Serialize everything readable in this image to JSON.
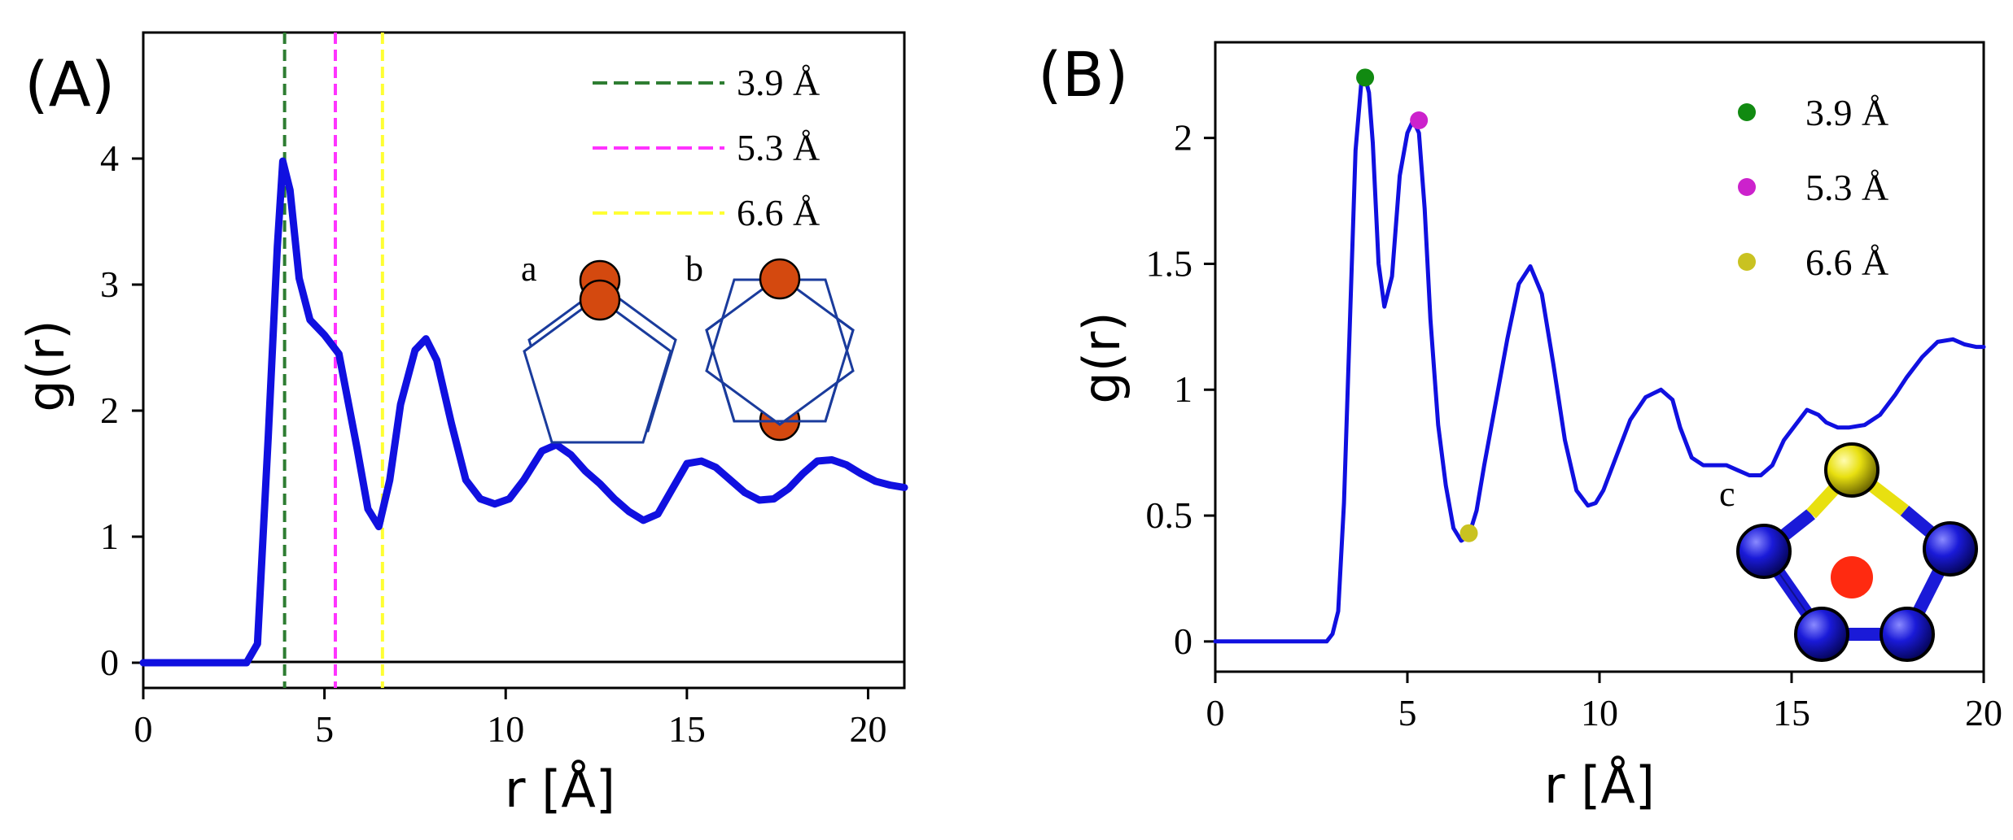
{
  "colors": {
    "curve": "#1010e0",
    "axis": "#000000",
    "green": "#2e7d32",
    "magenta": "#ff33ff",
    "yellow": "#ffff33",
    "dot_green": "#118a11",
    "dot_magenta": "#cc22cc",
    "dot_yellow": "#c9c221",
    "atom_orange": "#d4490f",
    "pentagon": "#1a3b9c",
    "sphere_blue": "#1a1ad8",
    "sphere_yellow": "#e8e010",
    "center_red": "#ff2a10"
  },
  "chart_data": [
    {
      "type": "line",
      "panel_label": "(A)",
      "xlabel": "r [Å]",
      "ylabel": "g(r)",
      "xlim": [
        0,
        21
      ],
      "ylim": [
        -0.2,
        5.0
      ],
      "xticks": [
        0,
        5,
        10,
        15,
        20
      ],
      "yticks": [
        0,
        1,
        2,
        3,
        4
      ],
      "grid": false,
      "series": [
        {
          "name": "g(r)",
          "x": [
            0,
            2.85,
            3.15,
            3.45,
            3.7,
            3.85,
            4.05,
            4.3,
            4.6,
            5.0,
            5.4,
            5.9,
            6.2,
            6.5,
            6.8,
            7.1,
            7.5,
            7.8,
            8.1,
            8.5,
            8.9,
            9.3,
            9.7,
            10.1,
            10.5,
            11.0,
            11.4,
            11.8,
            12.2,
            12.6,
            13.0,
            13.4,
            13.8,
            14.2,
            14.6,
            15.0,
            15.4,
            15.8,
            16.2,
            16.6,
            17.0,
            17.4,
            17.8,
            18.2,
            18.6,
            19.0,
            19.4,
            19.8,
            20.2,
            20.6,
            21.0
          ],
          "y": [
            0,
            0,
            0.15,
            1.8,
            3.3,
            3.98,
            3.75,
            3.05,
            2.72,
            2.6,
            2.45,
            1.7,
            1.22,
            1.08,
            1.45,
            2.05,
            2.48,
            2.57,
            2.4,
            1.9,
            1.45,
            1.3,
            1.26,
            1.3,
            1.45,
            1.68,
            1.73,
            1.65,
            1.52,
            1.42,
            1.3,
            1.2,
            1.13,
            1.18,
            1.38,
            1.58,
            1.6,
            1.55,
            1.45,
            1.35,
            1.29,
            1.3,
            1.38,
            1.5,
            1.6,
            1.61,
            1.57,
            1.5,
            1.44,
            1.41,
            1.39
          ]
        }
      ],
      "vlines": [
        {
          "x": 3.9,
          "label": "3.9 Å",
          "color": "#2e7d32"
        },
        {
          "x": 5.3,
          "label": "5.3 Å",
          "color": "#ff33ff"
        },
        {
          "x": 6.6,
          "label": "6.6 Å",
          "color": "#ffff33"
        }
      ],
      "legend_position": "top-right",
      "inset_labels": [
        "a",
        "b"
      ]
    },
    {
      "type": "line",
      "panel_label": "(B)",
      "xlabel": "r [Å]",
      "ylabel": "g(r)",
      "xlim": [
        0,
        20
      ],
      "ylim": [
        -0.12,
        2.38
      ],
      "xticks": [
        0,
        5,
        10,
        15,
        20
      ],
      "yticks": [
        0,
        0.5,
        1,
        1.5,
        2
      ],
      "ytick_labels": [
        "0",
        "0.5",
        "1",
        "1.5",
        "2"
      ],
      "grid": false,
      "series": [
        {
          "name": "g(r)",
          "x": [
            0,
            2.9,
            3.05,
            3.2,
            3.35,
            3.5,
            3.65,
            3.8,
            3.9,
            4.0,
            4.1,
            4.25,
            4.4,
            4.6,
            4.8,
            5.0,
            5.15,
            5.3,
            5.45,
            5.6,
            5.8,
            6.0,
            6.2,
            6.4,
            6.6,
            6.8,
            7.0,
            7.3,
            7.6,
            7.9,
            8.2,
            8.5,
            8.8,
            9.1,
            9.4,
            9.7,
            9.9,
            10.1,
            10.4,
            10.8,
            11.2,
            11.6,
            11.9,
            12.1,
            12.4,
            12.7,
            13.0,
            13.3,
            13.6,
            13.9,
            14.2,
            14.5,
            14.8,
            15.1,
            15.4,
            15.7,
            15.9,
            16.2,
            16.5,
            16.9,
            17.3,
            17.7,
            18.0,
            18.4,
            18.8,
            19.2,
            19.5,
            19.8,
            20.0
          ],
          "y": [
            0,
            0,
            0.03,
            0.12,
            0.55,
            1.25,
            1.95,
            2.22,
            2.24,
            2.18,
            1.98,
            1.5,
            1.33,
            1.45,
            1.85,
            2.02,
            2.07,
            2.02,
            1.72,
            1.28,
            0.86,
            0.62,
            0.45,
            0.4,
            0.42,
            0.52,
            0.7,
            0.95,
            1.2,
            1.42,
            1.49,
            1.38,
            1.1,
            0.8,
            0.6,
            0.54,
            0.55,
            0.6,
            0.72,
            0.88,
            0.97,
            1.0,
            0.96,
            0.85,
            0.73,
            0.7,
            0.7,
            0.7,
            0.68,
            0.66,
            0.66,
            0.7,
            0.8,
            0.86,
            0.92,
            0.9,
            0.87,
            0.85,
            0.85,
            0.86,
            0.9,
            0.98,
            1.05,
            1.13,
            1.19,
            1.2,
            1.18,
            1.17,
            1.17
          ]
        }
      ],
      "markers": [
        {
          "x": 3.9,
          "y": 2.24,
          "label": "3.9 Å",
          "color": "#118a11"
        },
        {
          "x": 5.3,
          "y": 2.07,
          "label": "5.3 Å",
          "color": "#cc22cc"
        },
        {
          "x": 6.6,
          "y": 0.43,
          "label": "6.6 Å",
          "color": "#c9c221"
        }
      ],
      "legend_position": "top-right",
      "inset_labels": [
        "c"
      ]
    }
  ]
}
